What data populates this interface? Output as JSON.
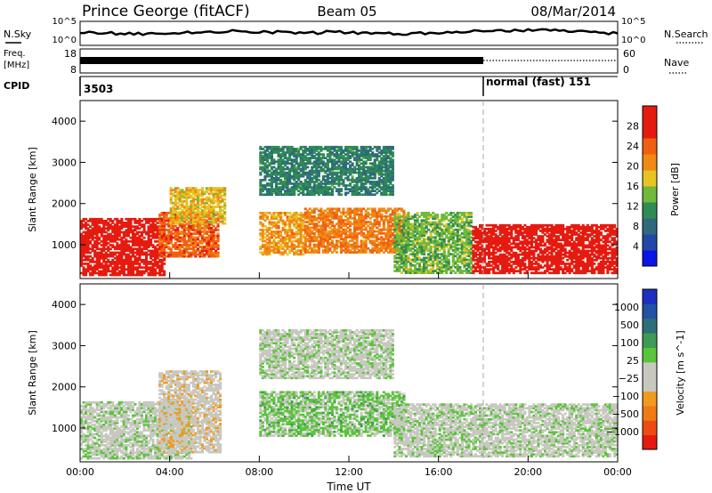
{
  "header": {
    "station": "Prince George (fitACF)",
    "beam": "Beam 05",
    "date": "08/Mar/2014"
  },
  "panel_labels": {
    "nsky": "N.Sky",
    "nsearch": "N.Search",
    "freq_line1": "Freq.",
    "freq_line2": "[MHz]",
    "nave": "Nave",
    "cpid": "CPID"
  },
  "noise_ticks": {
    "top": "10^5",
    "bottom": "10^0"
  },
  "freq_ticks": {
    "top": "18",
    "bottom": "8"
  },
  "nave_ticks": {
    "top": "60",
    "bottom": "0"
  },
  "cpid_segments": [
    {
      "label": "3503",
      "start_hour": 0
    },
    {
      "label": "normal (fast) 151",
      "start_hour": 18
    }
  ],
  "colors": {
    "power_scale": [
      "#0a16e6",
      "#2347a8",
      "#2f6a7c",
      "#2f8c52",
      "#70b93a",
      "#e7c324",
      "#f08a14",
      "#f06012",
      "#e51b10",
      "#e51b10"
    ],
    "velocity_scale": [
      "#e51b10",
      "#ef4a14",
      "#f07a16",
      "#f09a20",
      "#c8c8c0",
      "#c8c8c0",
      "#5ac43a",
      "#3e9a54",
      "#2f6f78",
      "#2351a5",
      "#1d2fbe"
    ],
    "nodata": "#ffffff"
  },
  "chart_data": [
    {
      "type": "heatmap",
      "title": "Power [dB]",
      "ylabel": "Slant Range [km]",
      "xlabel": "Time UT",
      "xlim": [
        0,
        24
      ],
      "ylim": [
        180,
        4500
      ],
      "yticks": [
        1000,
        2000,
        3000,
        4000
      ],
      "xticks": [
        "00:00",
        "04:00",
        "08:00",
        "12:00",
        "16:00",
        "20:00",
        "00:00"
      ],
      "colorbar": {
        "label": "Power [dB]",
        "min": 0,
        "max": 32,
        "ticks": [
          "4",
          "8",
          "12",
          "16",
          "20",
          "24",
          "28"
        ]
      },
      "scatter_regions": [
        {
          "t0": 0.0,
          "t1": 3.8,
          "r0": 250,
          "r1": 1650,
          "value": 30
        },
        {
          "t0": 3.5,
          "t1": 6.2,
          "r0": 700,
          "r1": 1800,
          "value": 24
        },
        {
          "t0": 4.0,
          "t1": 6.5,
          "r0": 1500,
          "r1": 2400,
          "value": 18
        },
        {
          "t0": 8.0,
          "t1": 10.0,
          "r0": 750,
          "r1": 1800,
          "value": 20
        },
        {
          "t0": 10.0,
          "t1": 14.5,
          "r0": 800,
          "r1": 1900,
          "value": 22
        },
        {
          "t0": 14.0,
          "t1": 17.5,
          "r0": 300,
          "r1": 1800,
          "value": 14
        },
        {
          "t0": 8.0,
          "t1": 14.0,
          "r0": 2200,
          "r1": 3400,
          "value": 10
        },
        {
          "t0": 17.5,
          "t1": 24.0,
          "r0": 300,
          "r1": 1500,
          "value": 30
        }
      ]
    },
    {
      "type": "heatmap",
      "title": "Velocity [m s-1]",
      "ylabel": "Slant Range [km]",
      "xlabel": "Time UT",
      "xlim": [
        0,
        24
      ],
      "ylim": [
        180,
        4500
      ],
      "yticks": [
        1000,
        2000,
        3000,
        4000
      ],
      "xticks": [
        "00:00",
        "04:00",
        "08:00",
        "12:00",
        "16:00",
        "20:00",
        "00:00"
      ],
      "colorbar": {
        "label": "Velocity [m s^-1]",
        "min": -1200,
        "max": 1200,
        "ticks": [
          "1000",
          "500",
          "100",
          "25",
          "−25",
          "−100",
          "−500",
          "−1000"
        ]
      },
      "scatter_regions": [
        {
          "t0": 0.0,
          "t1": 5.0,
          "r0": 250,
          "r1": 1650,
          "value": 0
        },
        {
          "t0": 3.5,
          "t1": 6.3,
          "r0": 400,
          "r1": 2400,
          "value": -200
        },
        {
          "t0": 8.0,
          "t1": 14.5,
          "r0": 800,
          "r1": 1900,
          "value": 150
        },
        {
          "t0": 8.0,
          "t1": 14.0,
          "r0": 2200,
          "r1": 3400,
          "value": 0
        },
        {
          "t0": 14.0,
          "t1": 24.0,
          "r0": 300,
          "r1": 1600,
          "value": 0
        }
      ]
    }
  ]
}
